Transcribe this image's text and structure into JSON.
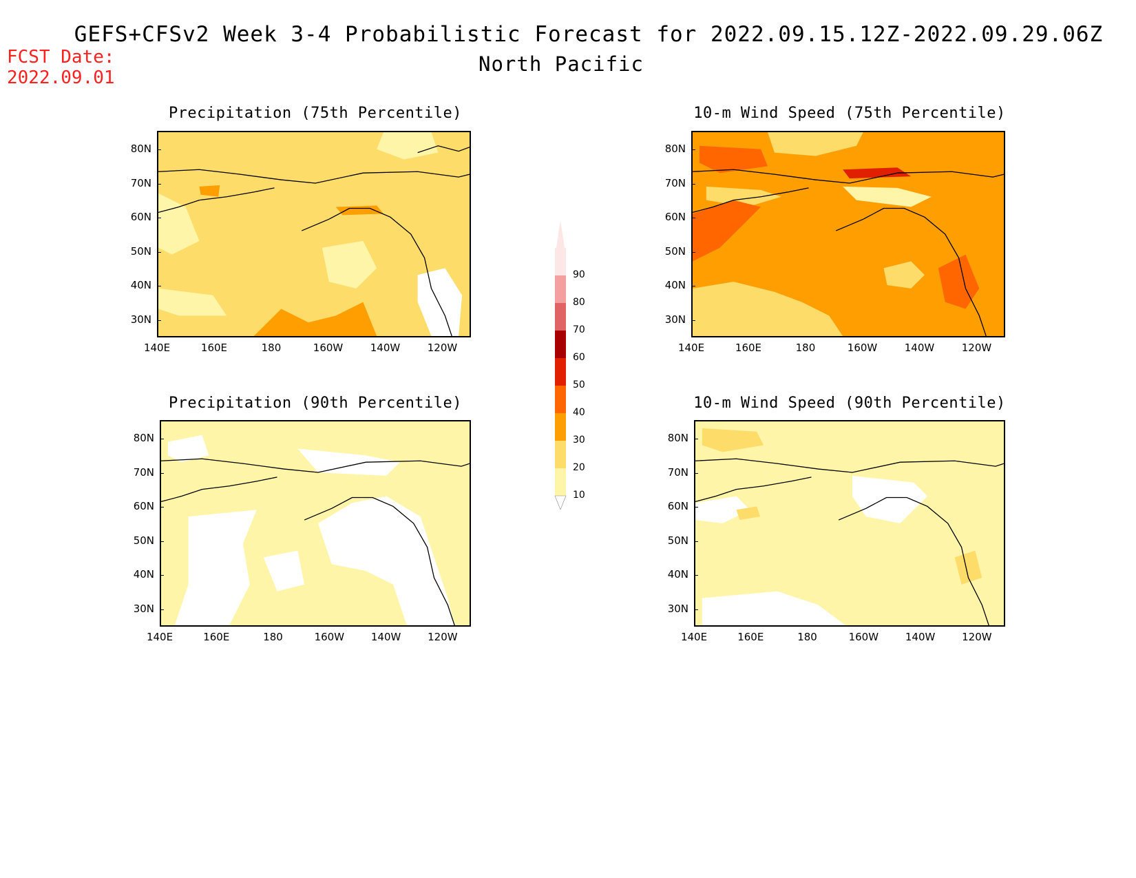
{
  "header": {
    "title": "GEFS+CFSv2 Week 3-4 Probabilistic Forecast for 2022.09.15.12Z-2022.09.29.06Z",
    "region": "North Pacific",
    "fcst_label": "FCST Date:",
    "fcst_date": "2022.09.01"
  },
  "axes": {
    "lat_labels": [
      "80N",
      "70N",
      "60N",
      "50N",
      "40N",
      "30N"
    ],
    "lon_labels": [
      "140E",
      "160E",
      "180",
      "160W",
      "140W",
      "120W"
    ]
  },
  "panels": [
    {
      "title": "Precipitation (75th Percentile)",
      "fill_level": 20
    },
    {
      "title": "10-m Wind Speed (75th Percentile)",
      "fill_level": 30
    },
    {
      "title": "Precipitation (90th Percentile)",
      "fill_level": 10
    },
    {
      "title": "10-m Wind Speed (90th Percentile)",
      "fill_level": 10
    }
  ],
  "colorbar": {
    "levels": [
      "90",
      "80",
      "70",
      "60",
      "50",
      "40",
      "30",
      "20",
      "10"
    ],
    "colors": [
      "#fde6e6",
      "#f4a0a0",
      "#e06464",
      "#a80000",
      "#e02000",
      "#ff6600",
      "#ff9e00",
      "#fddc6a",
      "#fff5a8"
    ]
  }
}
